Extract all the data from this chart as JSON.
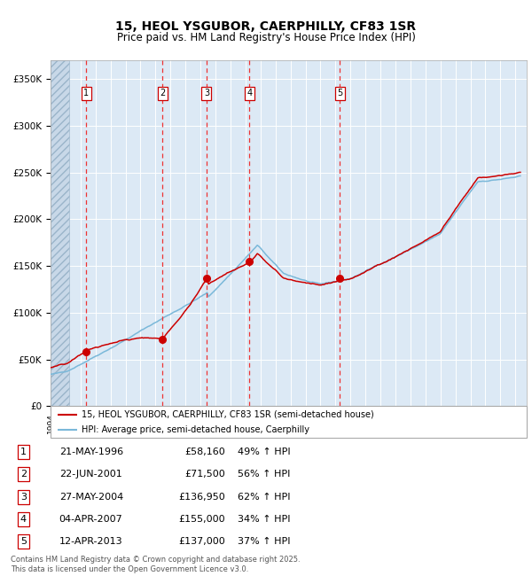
{
  "title_line1": "15, HEOL YSGUBOR, CAERPHILLY, CF83 1SR",
  "title_line2": "Price paid vs. HM Land Registry's House Price Index (HPI)",
  "ylim": [
    0,
    370000
  ],
  "xlim_start": 1994.0,
  "xlim_end": 2025.75,
  "yticks": [
    0,
    50000,
    100000,
    150000,
    200000,
    250000,
    300000,
    350000
  ],
  "ytick_labels": [
    "£0",
    "£50K",
    "£100K",
    "£150K",
    "£200K",
    "£250K",
    "£300K",
    "£350K"
  ],
  "plot_bg_color": "#dce9f5",
  "hpi_color": "#7ab8d9",
  "price_color": "#cc0000",
  "sale_dates_decimal": [
    1996.388,
    2001.472,
    2004.402,
    2007.253,
    2013.278
  ],
  "sale_prices": [
    58160,
    71500,
    136950,
    155000,
    137000
  ],
  "sale_labels": [
    "1",
    "2",
    "3",
    "4",
    "5"
  ],
  "legend_line1": "15, HEOL YSGUBOR, CAERPHILLY, CF83 1SR (semi-detached house)",
  "legend_line2": "HPI: Average price, semi-detached house, Caerphilly",
  "table_rows": [
    [
      "1",
      "21-MAY-1996",
      "£58,160",
      "49% ↑ HPI"
    ],
    [
      "2",
      "22-JUN-2001",
      "£71,500",
      "56% ↑ HPI"
    ],
    [
      "3",
      "27-MAY-2004",
      "£136,950",
      "62% ↑ HPI"
    ],
    [
      "4",
      "04-APR-2007",
      "£155,000",
      "34% ↑ HPI"
    ],
    [
      "5",
      "12-APR-2013",
      "£137,000",
      "37% ↑ HPI"
    ]
  ],
  "footnote": "Contains HM Land Registry data © Crown copyright and database right 2025.\nThis data is licensed under the Open Government Licence v3.0.",
  "grid_color": "#ffffff",
  "dashed_color": "#ee3333"
}
